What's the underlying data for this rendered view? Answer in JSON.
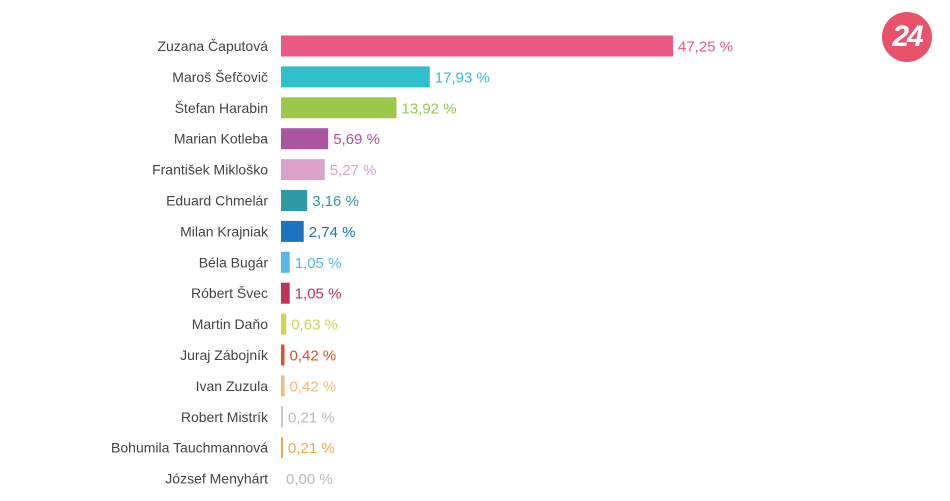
{
  "logo": {
    "text": "24",
    "color": "#e8536b"
  },
  "chart_data": {
    "type": "bar",
    "orientation": "horizontal",
    "categories": [
      "Zuzana Čaputová",
      "Maroš Šefčovič",
      "Štefan Harabin",
      "Marian Kotleba",
      "František Mikloško",
      "Eduard Chmelár",
      "Milan Krajniak",
      "Béla Bugár",
      "Róbert Švec",
      "Martin Daňo",
      "Juraj Zábojník",
      "Ivan Zuzula",
      "Robert Mistrík",
      "Bohumila Tauchmannová",
      "József Menyhárt"
    ],
    "values": [
      47.25,
      17.93,
      13.92,
      5.69,
      5.27,
      3.16,
      2.74,
      1.05,
      1.05,
      0.63,
      0.42,
      0.42,
      0.21,
      0.21,
      0.0
    ],
    "value_labels": [
      "47,25 %",
      "17,93 %",
      "13,92 %",
      "5,69 %",
      "5,27 %",
      "3,16 %",
      "2,74 %",
      "1,05 %",
      "1,05 %",
      "0,63 %",
      "0,42 %",
      "0,42 %",
      "0,21 %",
      "0,21 %",
      "0,00 %"
    ],
    "colors": [
      "#ea5a85",
      "#32bfcc",
      "#9cc84a",
      "#a9559f",
      "#dca2c9",
      "#2f9aa3",
      "#1c74bf",
      "#56b7e8",
      "#c1335b",
      "#ccd452",
      "#e0502a",
      "#f4b979",
      "#c9c9c9",
      "#f0a94a",
      "#bbbbbb"
    ],
    "label_colors": [
      "#ea5a85",
      "#32bfcc",
      "#9cc84a",
      "#a9559f",
      "#dca2c9",
      "#2f9aa3",
      "#1c74bf",
      "#56b7e8",
      "#c1335b",
      "#ccd452",
      "#e0502a",
      "#f4b979",
      "#bbbbbb",
      "#f0a94a",
      "#bbbbbb"
    ],
    "xlim": [
      0,
      47.25
    ],
    "grid": false,
    "legend": "none"
  }
}
